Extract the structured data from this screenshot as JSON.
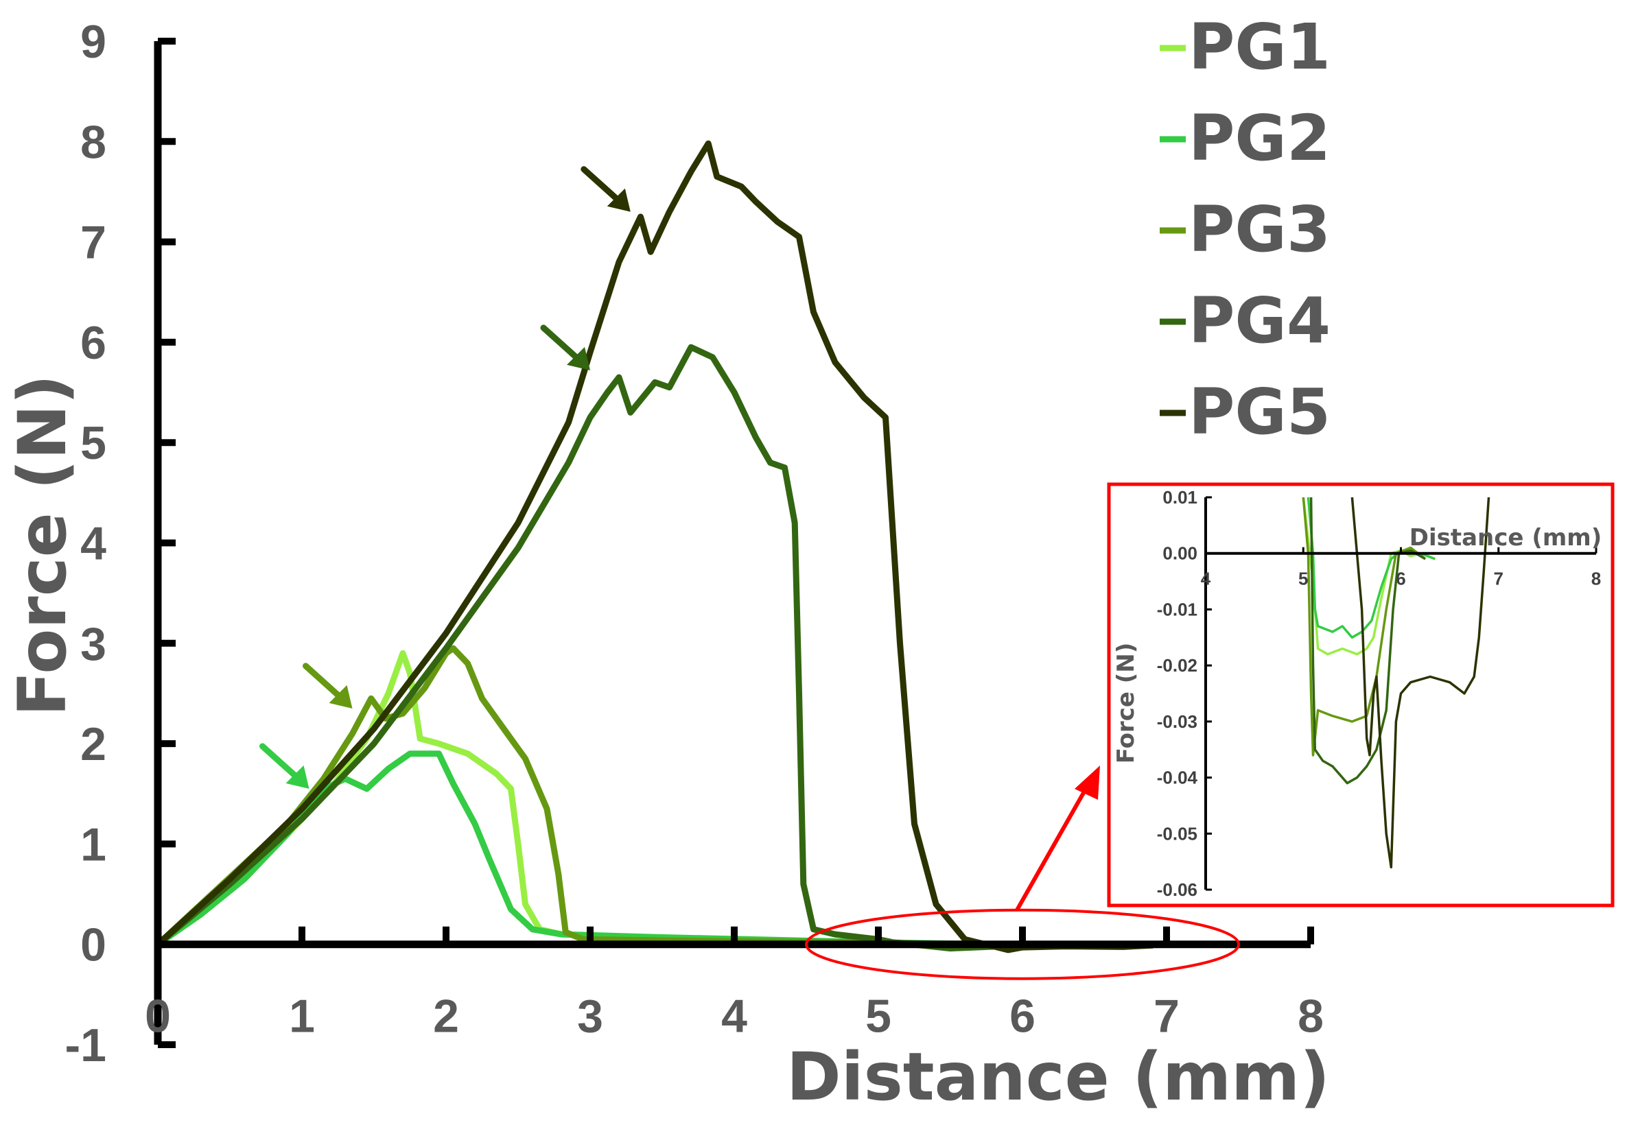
{
  "chart_data": [
    {
      "type": "line",
      "xlabel": "Distance (mm)",
      "ylabel": "Force (N)",
      "xlim": [
        0,
        8
      ],
      "ylim": [
        -1,
        9
      ],
      "xticks": [
        "0",
        "1",
        "2",
        "3",
        "4",
        "5",
        "6",
        "7",
        "8"
      ],
      "yticks": [
        "-1",
        "0",
        "1",
        "2",
        "3",
        "4",
        "5",
        "6",
        "7",
        "8",
        "9"
      ],
      "grid": false,
      "legend_position": "top-right",
      "series": [
        {
          "name": "PG1",
          "color": "#99ee44",
          "points": [
            [
              0,
              0
            ],
            [
              0.3,
              0.35
            ],
            [
              0.6,
              0.7
            ],
            [
              0.9,
              1.1
            ],
            [
              1.2,
              1.55
            ],
            [
              1.45,
              2.05
            ],
            [
              1.6,
              2.5
            ],
            [
              1.7,
              2.9
            ],
            [
              1.75,
              2.7
            ],
            [
              1.82,
              2.05
            ],
            [
              1.95,
              2.0
            ],
            [
              2.15,
              1.9
            ],
            [
              2.35,
              1.7
            ],
            [
              2.45,
              1.55
            ],
            [
              2.5,
              1.0
            ],
            [
              2.55,
              0.4
            ],
            [
              2.65,
              0.15
            ],
            [
              2.8,
              0.1
            ],
            [
              3.5,
              0.06
            ],
            [
              5.0,
              0.02
            ],
            [
              6.3,
              -0.02
            ]
          ]
        },
        {
          "name": "PG2",
          "color": "#33cc44",
          "points": [
            [
              0,
              0
            ],
            [
              0.3,
              0.3
            ],
            [
              0.6,
              0.65
            ],
            [
              0.9,
              1.1
            ],
            [
              1.15,
              1.55
            ],
            [
              1.3,
              1.65
            ],
            [
              1.45,
              1.55
            ],
            [
              1.6,
              1.75
            ],
            [
              1.75,
              1.9
            ],
            [
              1.95,
              1.9
            ],
            [
              2.05,
              1.6
            ],
            [
              2.2,
              1.2
            ],
            [
              2.3,
              0.85
            ],
            [
              2.45,
              0.35
            ],
            [
              2.6,
              0.15
            ],
            [
              2.8,
              0.1
            ],
            [
              3.5,
              0.07
            ],
            [
              5.0,
              0.02
            ],
            [
              6.2,
              -0.01
            ]
          ]
        },
        {
          "name": "PG3",
          "color": "#669911",
          "points": [
            [
              0,
              0
            ],
            [
              0.3,
              0.4
            ],
            [
              0.6,
              0.8
            ],
            [
              0.9,
              1.2
            ],
            [
              1.15,
              1.65
            ],
            [
              1.35,
              2.1
            ],
            [
              1.48,
              2.45
            ],
            [
              1.58,
              2.25
            ],
            [
              1.7,
              2.3
            ],
            [
              1.85,
              2.55
            ],
            [
              2.0,
              2.9
            ],
            [
              2.05,
              2.95
            ],
            [
              2.15,
              2.8
            ],
            [
              2.25,
              2.45
            ],
            [
              2.4,
              2.15
            ],
            [
              2.55,
              1.85
            ],
            [
              2.7,
              1.35
            ],
            [
              2.78,
              0.7
            ],
            [
              2.83,
              0.12
            ],
            [
              2.95,
              0.05
            ],
            [
              4.0,
              0.03
            ],
            [
              5.0,
              0.02
            ],
            [
              6.0,
              -0.03
            ]
          ]
        },
        {
          "name": "PG4",
          "color": "#336611",
          "points": [
            [
              0,
              0
            ],
            [
              0.5,
              0.6
            ],
            [
              1.0,
              1.25
            ],
            [
              1.5,
              2.0
            ],
            [
              2.0,
              2.95
            ],
            [
              2.5,
              3.95
            ],
            [
              2.85,
              4.8
            ],
            [
              3.0,
              5.25
            ],
            [
              3.12,
              5.5
            ],
            [
              3.2,
              5.65
            ],
            [
              3.28,
              5.3
            ],
            [
              3.45,
              5.6
            ],
            [
              3.55,
              5.55
            ],
            [
              3.7,
              5.95
            ],
            [
              3.85,
              5.85
            ],
            [
              4.0,
              5.5
            ],
            [
              4.15,
              5.05
            ],
            [
              4.25,
              4.8
            ],
            [
              4.35,
              4.75
            ],
            [
              4.42,
              4.2
            ],
            [
              4.45,
              2.5
            ],
            [
              4.48,
              0.6
            ],
            [
              4.55,
              0.15
            ],
            [
              4.7,
              0.1
            ],
            [
              5.0,
              0.05
            ],
            [
              5.1,
              0.02
            ],
            [
              5.5,
              -0.04
            ],
            [
              6.0,
              -0.01
            ]
          ]
        },
        {
          "name": "PG5",
          "color": "#2b3300",
          "points": [
            [
              0,
              0
            ],
            [
              0.5,
              0.65
            ],
            [
              1.0,
              1.35
            ],
            [
              1.5,
              2.15
            ],
            [
              2.0,
              3.1
            ],
            [
              2.5,
              4.2
            ],
            [
              2.85,
              5.2
            ],
            [
              3.0,
              5.9
            ],
            [
              3.2,
              6.8
            ],
            [
              3.35,
              7.25
            ],
            [
              3.42,
              6.9
            ],
            [
              3.55,
              7.3
            ],
            [
              3.7,
              7.7
            ],
            [
              3.82,
              7.98
            ],
            [
              3.88,
              7.65
            ],
            [
              4.05,
              7.55
            ],
            [
              4.15,
              7.4
            ],
            [
              4.3,
              7.2
            ],
            [
              4.45,
              7.05
            ],
            [
              4.55,
              6.3
            ],
            [
              4.7,
              5.8
            ],
            [
              4.9,
              5.45
            ],
            [
              5.05,
              5.25
            ],
            [
              5.15,
              3.0
            ],
            [
              5.25,
              1.2
            ],
            [
              5.4,
              0.4
            ],
            [
              5.6,
              0.05
            ],
            [
              5.8,
              -0.02
            ],
            [
              5.9,
              -0.056
            ],
            [
              6.0,
              -0.03
            ],
            [
              6.3,
              -0.02
            ],
            [
              6.7,
              -0.025
            ],
            [
              6.9,
              -0.01
            ]
          ]
        }
      ],
      "annotations": [
        {
          "type": "arrow",
          "series": "PG2",
          "at": [
            1.05,
            1.55
          ]
        },
        {
          "type": "arrow",
          "series": "PG3",
          "at": [
            1.35,
            2.35
          ]
        },
        {
          "type": "arrow",
          "series": "PG4",
          "at": [
            3.0,
            5.72
          ]
        },
        {
          "type": "arrow",
          "series": "PG5",
          "at": [
            3.28,
            7.3
          ]
        },
        {
          "type": "ellipse",
          "color": "#ff0000",
          "label": "zoom region",
          "x_range": [
            4.5,
            7.5
          ],
          "y_range": [
            -0.15,
            0.15
          ]
        }
      ]
    },
    {
      "type": "line",
      "inset": true,
      "xlabel": "Distance (mm)",
      "ylabel": "Force (N)",
      "xlim": [
        4,
        8
      ],
      "ylim": [
        -0.06,
        0.01
      ],
      "xticks": [
        "4",
        "5",
        "6",
        "7",
        "8"
      ],
      "yticks": [
        "0.01",
        "0.00",
        "-0.01",
        "-0.02",
        "-0.03",
        "-0.04",
        "-0.05",
        "-0.06"
      ],
      "border_color": "#ff0000",
      "series": [
        {
          "name": "PG1",
          "color": "#99ee44",
          "points": [
            [
              5.0,
              0.01
            ],
            [
              5.1,
              -0.005
            ],
            [
              5.15,
              -0.017
            ],
            [
              5.25,
              -0.018
            ],
            [
              5.4,
              -0.017
            ],
            [
              5.55,
              -0.018
            ],
            [
              5.65,
              -0.017
            ],
            [
              5.72,
              -0.015
            ],
            [
              5.8,
              -0.008
            ],
            [
              5.9,
              0.0
            ],
            [
              6.0,
              0.0005
            ],
            [
              6.1,
              -0.0005
            ],
            [
              6.2,
              0.0
            ],
            [
              6.35,
              -0.001
            ]
          ]
        },
        {
          "name": "PG2",
          "color": "#33cc44",
          "points": [
            [
              5.05,
              0.01
            ],
            [
              5.1,
              0.0
            ],
            [
              5.12,
              -0.01
            ],
            [
              5.15,
              -0.013
            ],
            [
              5.3,
              -0.014
            ],
            [
              5.4,
              -0.013
            ],
            [
              5.5,
              -0.015
            ],
            [
              5.6,
              -0.014
            ],
            [
              5.7,
              -0.012
            ],
            [
              5.8,
              -0.006
            ],
            [
              5.9,
              -0.001
            ],
            [
              6.0,
              0.0005
            ],
            [
              6.2,
              0.0
            ],
            [
              6.35,
              -0.001
            ]
          ]
        },
        {
          "name": "PG3",
          "color": "#669911",
          "points": [
            [
              5.0,
              0.01
            ],
            [
              5.05,
              0.0
            ],
            [
              5.08,
              -0.025
            ],
            [
              5.1,
              -0.036
            ],
            [
              5.15,
              -0.028
            ],
            [
              5.3,
              -0.029
            ],
            [
              5.5,
              -0.03
            ],
            [
              5.65,
              -0.029
            ],
            [
              5.75,
              -0.022
            ],
            [
              5.85,
              -0.01
            ],
            [
              5.95,
              0.0
            ],
            [
              6.1,
              0.001
            ],
            [
              6.25,
              -0.001
            ]
          ]
        },
        {
          "name": "PG4",
          "color": "#336611",
          "points": [
            [
              5.08,
              0.01
            ],
            [
              5.1,
              -0.02
            ],
            [
              5.12,
              -0.035
            ],
            [
              5.2,
              -0.037
            ],
            [
              5.3,
              -0.038
            ],
            [
              5.45,
              -0.041
            ],
            [
              5.55,
              -0.04
            ],
            [
              5.65,
              -0.038
            ],
            [
              5.75,
              -0.035
            ],
            [
              5.85,
              -0.028
            ],
            [
              5.92,
              -0.01
            ],
            [
              5.98,
              0.0
            ],
            [
              6.1,
              0.0005
            ],
            [
              6.25,
              -0.001
            ]
          ]
        },
        {
          "name": "PG5",
          "color": "#2b3300",
          "points": [
            [
              5.5,
              0.01
            ],
            [
              5.6,
              -0.01
            ],
            [
              5.65,
              -0.033
            ],
            [
              5.68,
              -0.036
            ],
            [
              5.72,
              -0.025
            ],
            [
              5.75,
              -0.022
            ],
            [
              5.8,
              -0.037
            ],
            [
              5.85,
              -0.05
            ],
            [
              5.9,
              -0.056
            ],
            [
              5.95,
              -0.03
            ],
            [
              6.0,
              -0.025
            ],
            [
              6.1,
              -0.023
            ],
            [
              6.3,
              -0.022
            ],
            [
              6.5,
              -0.023
            ],
            [
              6.65,
              -0.025
            ],
            [
              6.75,
              -0.022
            ],
            [
              6.8,
              -0.015
            ],
            [
              6.85,
              -0.003
            ],
            [
              6.9,
              0.01
            ]
          ]
        }
      ]
    }
  ]
}
